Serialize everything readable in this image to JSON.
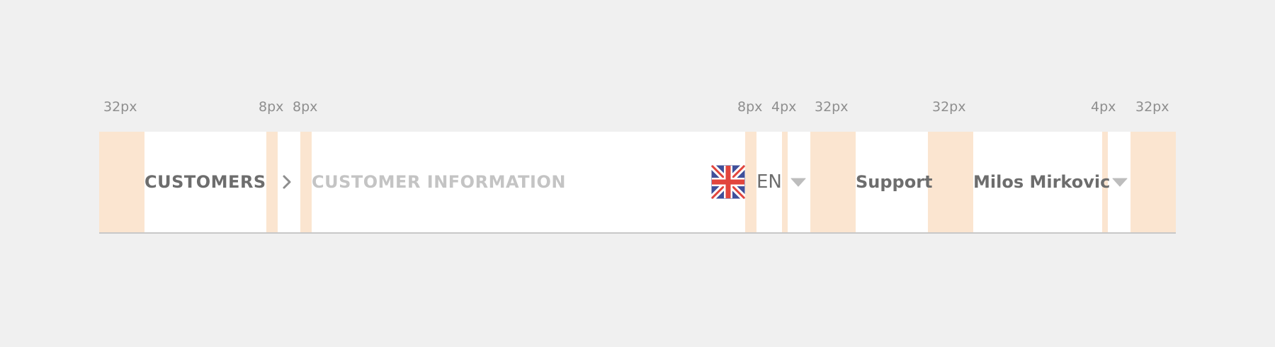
{
  "spacing_labels": [
    "32px",
    "8px",
    "8px",
    "8px",
    "4px",
    "32px",
    "32px",
    "4px",
    "32px"
  ],
  "breadcrumb": {
    "current_section": "CUSTOMERS",
    "separator_icon": "chevron-right-icon",
    "current_page": "CUSTOMER INFORMATION"
  },
  "language": {
    "flag_icon": "uk-flag-icon",
    "code": "EN",
    "caret_icon": "caret-down-icon"
  },
  "support": {
    "label": "Support"
  },
  "user": {
    "name": "Milos Mirkovic",
    "caret_icon": "caret-down-icon"
  },
  "colors": {
    "padding_highlight": "#fbe5d0",
    "primary_text": "#6d6d6d",
    "muted_text": "#c4c4c4",
    "label_text": "#8e8e8e",
    "flag_blue": "#3f4f9a",
    "flag_red": "#e2453d"
  }
}
